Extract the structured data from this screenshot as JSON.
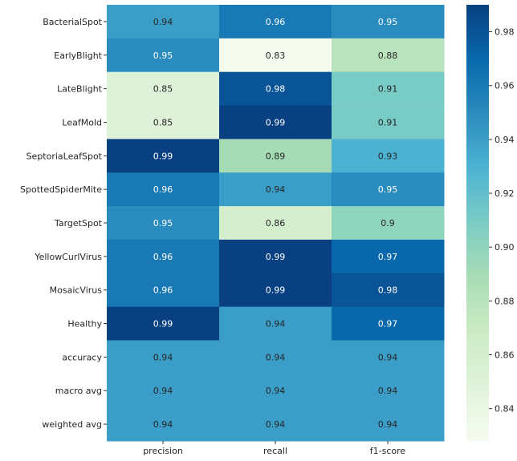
{
  "chart_data": {
    "type": "heatmap",
    "title": "",
    "xlabel": "",
    "ylabel": "",
    "columns": [
      "precision",
      "recall",
      "f1-score"
    ],
    "rows": [
      "BacterialSpot",
      "EarlyBlight",
      "LateBlight",
      "LeafMold",
      "SeptoriaLeafSpot",
      "SpottedSpiderMite",
      "TargetSpot",
      "YellowCurlVirus",
      "MosaicVirus",
      "Healthy",
      "accuracy",
      "macro avg",
      "weighted avg"
    ],
    "values": [
      [
        0.94,
        0.96,
        0.95
      ],
      [
        0.95,
        0.83,
        0.88
      ],
      [
        0.85,
        0.98,
        0.91
      ],
      [
        0.85,
        0.99,
        0.91
      ],
      [
        0.99,
        0.89,
        0.93
      ],
      [
        0.96,
        0.94,
        0.95
      ],
      [
        0.95,
        0.86,
        0.9
      ],
      [
        0.96,
        0.99,
        0.97
      ],
      [
        0.96,
        0.99,
        0.98
      ],
      [
        0.99,
        0.94,
        0.97
      ],
      [
        0.94,
        0.94,
        0.94
      ],
      [
        0.94,
        0.94,
        0.94
      ],
      [
        0.94,
        0.94,
        0.94
      ]
    ],
    "value_labels": [
      [
        "0.94",
        "0.96",
        "0.95"
      ],
      [
        "0.95",
        "0.83",
        "0.88"
      ],
      [
        "0.85",
        "0.98",
        "0.91"
      ],
      [
        "0.85",
        "0.99",
        "0.91"
      ],
      [
        "0.99",
        "0.89",
        "0.93"
      ],
      [
        "0.96",
        "0.94",
        "0.95"
      ],
      [
        "0.95",
        "0.86",
        "0.9"
      ],
      [
        "0.96",
        "0.99",
        "0.97"
      ],
      [
        "0.96",
        "0.99",
        "0.98"
      ],
      [
        "0.99",
        "0.94",
        "0.97"
      ],
      [
        "0.94",
        "0.94",
        "0.94"
      ],
      [
        "0.94",
        "0.94",
        "0.94"
      ],
      [
        "0.94",
        "0.94",
        "0.94"
      ]
    ],
    "colormap": "GnBu",
    "color_stops": [
      "#f7fcf0",
      "#e0f3db",
      "#ccebc5",
      "#a8ddb5",
      "#7bccc4",
      "#4eb3d3",
      "#2b8cbe",
      "#0868ac",
      "#084081"
    ],
    "color_range": [
      0.828,
      0.99
    ],
    "colorbar_ticks": [
      0.84,
      0.86,
      0.88,
      0.9,
      0.92,
      0.94,
      0.96,
      0.98
    ],
    "colorbar_tick_labels": [
      "0.84",
      "0.86",
      "0.88",
      "0.90",
      "0.92",
      "0.94",
      "0.96",
      "0.98"
    ],
    "grid": false,
    "legend": "colorbar-right"
  }
}
